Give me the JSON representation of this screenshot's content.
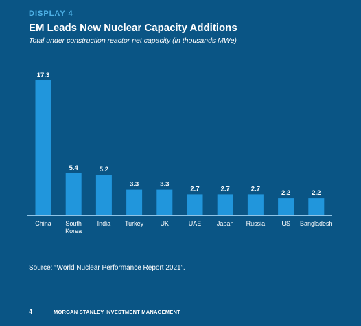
{
  "header": {
    "eyebrow": "DISPLAY 4",
    "title": "EM Leads New Nuclear Capacity Additions",
    "subtitle": "Total under construction reactor net capacity (in thousands MWe)"
  },
  "chart_data": {
    "type": "bar",
    "categories": [
      [
        "China"
      ],
      [
        "South",
        "Korea"
      ],
      [
        "India"
      ],
      [
        "Turkey"
      ],
      [
        "UK"
      ],
      [
        "UAE"
      ],
      [
        "Japan"
      ],
      [
        "Russia"
      ],
      [
        "US"
      ],
      [
        "Bangladesh"
      ]
    ],
    "values": [
      17.3,
      5.4,
      5.2,
      3.3,
      3.3,
      2.7,
      2.7,
      2.7,
      2.2,
      2.2
    ],
    "data_labels": [
      "17.3",
      "5.4",
      "5.2",
      "3.3",
      "3.3",
      "2.7",
      "2.7",
      "2.7",
      "2.2",
      "2.2"
    ],
    "ylim": [
      0,
      17.3
    ],
    "grid": false,
    "legend": "none",
    "bar_color": "#2196dc"
  },
  "source": "Source: “World Nuclear Performance Report 2021”.",
  "footer": {
    "page": "4",
    "brand": "MORGAN STANLEY INVESTMENT MANAGEMENT"
  }
}
